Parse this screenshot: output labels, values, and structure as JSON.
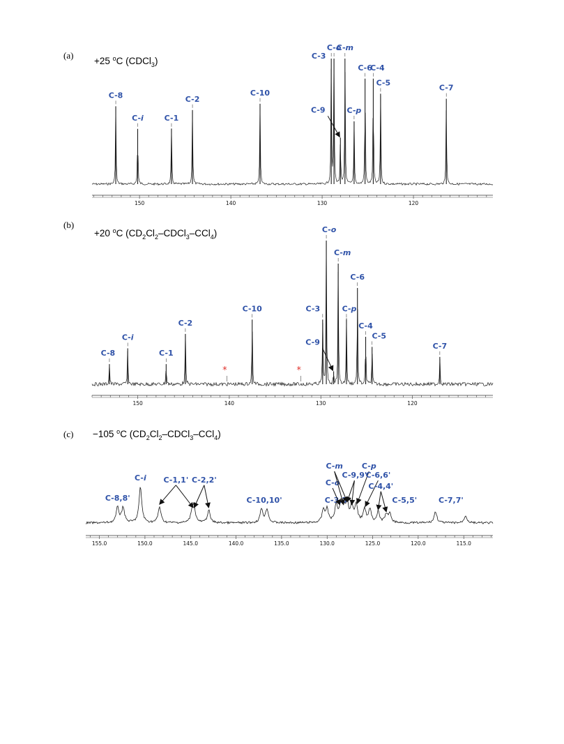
{
  "chart_data": [
    {
      "type": "line",
      "panel": "(a)",
      "condition": "+25 °C (CDCl3)",
      "xlabel": "",
      "ylabel": "",
      "xlim": [
        155.2,
        111.3
      ],
      "x_ticks": [
        150,
        140,
        130,
        120
      ],
      "tick_labels": [
        "150",
        "140",
        "130",
        "120"
      ],
      "series": [
        {
          "values": [
            {
              "x": 152.6,
              "y": 0.62,
              "label": "C-8",
              "dx": 0,
              "dy": 0
            },
            {
              "x": 150.2,
              "y": 0.44,
              "label": "C-i",
              "dx": 0,
              "dy": 0
            },
            {
              "x": 146.5,
              "y": 0.44,
              "label": "C-1",
              "dx": 0,
              "dy": 0
            },
            {
              "x": 144.2,
              "y": 0.59,
              "label": "C-2",
              "dx": 0,
              "dy": 0
            },
            {
              "x": 136.8,
              "y": 0.64,
              "label": "C-10",
              "dx": 0,
              "dy": 0
            },
            {
              "x": 129.0,
              "y": 1.0,
              "label": "C-3",
              "dx": -18,
              "dy": 12
            },
            {
              "x": 128.7,
              "y": 1.0,
              "label": "C-o",
              "dx": 0,
              "dy": 0
            },
            {
              "x": 128.0,
              "y": 0.37,
              "label": "C-9",
              "dx": -32,
              "dy": -14
            },
            {
              "x": 127.5,
              "y": 1.0,
              "label": "C-m",
              "dx": 0,
              "dy": 0
            },
            {
              "x": 126.5,
              "y": 0.5,
              "label": "C-p",
              "dx": 0,
              "dy": 0
            },
            {
              "x": 125.3,
              "y": 0.84,
              "label": "C-6",
              "dx": 0,
              "dy": 0
            },
            {
              "x": 124.4,
              "y": 0.84,
              "label": "C-4",
              "dx": 6,
              "dy": 0
            },
            {
              "x": 123.6,
              "y": 0.72,
              "label": "C-5",
              "dx": 4,
              "dy": 0
            },
            {
              "x": 116.4,
              "y": 0.68,
              "label": "C-7",
              "dx": 0,
              "dy": 0
            }
          ]
        }
      ],
      "stars": []
    },
    {
      "type": "line",
      "panel": "(b)",
      "condition": "+20 °C (CD2Cl2–CDCl3–CCl4)",
      "xlabel": "",
      "ylabel": "",
      "xlim": [
        155.0,
        111.2
      ],
      "x_ticks": [
        150,
        140,
        130,
        120
      ],
      "tick_labels": [
        "150",
        "140",
        "130",
        "120"
      ],
      "series": [
        {
          "values": [
            {
              "x": 153.1,
              "y": 0.14,
              "label": "C-8",
              "dx": -2,
              "dy": 0
            },
            {
              "x": 151.1,
              "y": 0.25,
              "label": "C-i",
              "dx": 0,
              "dy": 0
            },
            {
              "x": 146.9,
              "y": 0.14,
              "label": "C-1",
              "dx": 0,
              "dy": 0
            },
            {
              "x": 144.8,
              "y": 0.35,
              "label": "C-2",
              "dx": 0,
              "dy": 0
            },
            {
              "x": 137.5,
              "y": 0.45,
              "label": "C-10",
              "dx": 0,
              "dy": 0
            },
            {
              "x": 129.8,
              "y": 0.45,
              "label": "C-3",
              "dx": -14,
              "dy": 0
            },
            {
              "x": 129.4,
              "y": 1.0,
              "label": "C-o",
              "dx": 4,
              "dy": 0
            },
            {
              "x": 128.6,
              "y": 0.09,
              "label": "C-9",
              "dx": -30,
              "dy": -16
            },
            {
              "x": 128.1,
              "y": 0.84,
              "label": "C-m",
              "dx": 6,
              "dy": 0
            },
            {
              "x": 127.2,
              "y": 0.45,
              "label": "C-p",
              "dx": 4,
              "dy": 0
            },
            {
              "x": 126.0,
              "y": 0.67,
              "label": "C-6",
              "dx": 0,
              "dy": 0
            },
            {
              "x": 125.1,
              "y": 0.33,
              "label": "C-4",
              "dx": 0,
              "dy": 0
            },
            {
              "x": 124.4,
              "y": 0.26,
              "label": "C-5",
              "dx": 10,
              "dy": 0
            },
            {
              "x": 117.0,
              "y": 0.19,
              "label": "C-7",
              "dx": 0,
              "dy": 0
            }
          ]
        }
      ],
      "stars": [
        {
          "x": 140.5
        },
        {
          "x": 132.4
        }
      ]
    },
    {
      "type": "line",
      "panel": "(c)",
      "condition": "−105 °C (CD2Cl2–CDCl3–CCl4)",
      "xlabel": "",
      "ylabel": "",
      "xlim": [
        156.5,
        111.8
      ],
      "x_ticks": [
        155,
        150,
        145,
        140,
        135,
        130,
        125,
        120,
        115
      ],
      "tick_labels": [
        "155.0",
        "150.0",
        "145.0",
        "140.0",
        "135.0",
        "130.0",
        "125.0",
        "120.0",
        "115.0"
      ],
      "series": [
        {
          "values": [
            {
              "x": 153.0,
              "y": 0.37,
              "label": "C-8,8'",
              "dx": 0,
              "dy": 0
            },
            {
              "x": 152.4,
              "y": 0.37,
              "label": "",
              "dx": 0,
              "dy": 0
            },
            {
              "x": 150.5,
              "y": 0.85,
              "label": "C-i",
              "dx": 0,
              "dy": 0
            },
            {
              "x": 148.4,
              "y": 0.38,
              "label": "",
              "dx": 0,
              "dy": 0
            },
            {
              "x": 144.8,
              "y": 0.3,
              "label": "",
              "dx": 0,
              "dy": 0
            },
            {
              "x": 144.6,
              "y": 0.3,
              "label": "",
              "dx": 0,
              "dy": 0
            },
            {
              "x": 143.0,
              "y": 0.3,
              "label": "",
              "dx": 0,
              "dy": 0
            },
            {
              "x": 137.2,
              "y": 0.33,
              "label": "",
              "dx": 0,
              "dy": 0
            },
            {
              "x": 136.6,
              "y": 0.33,
              "label": "",
              "dx": 0,
              "dy": 0
            },
            {
              "x": 130.4,
              "y": 0.3,
              "label": "",
              "dx": 0,
              "dy": 0
            },
            {
              "x": 130.0,
              "y": 0.3,
              "label": "",
              "dx": 0,
              "dy": 0
            },
            {
              "x": 129.0,
              "y": 0.42,
              "label": "",
              "dx": 0,
              "dy": 0
            },
            {
              "x": 128.5,
              "y": 0.37,
              "label": "",
              "dx": 0,
              "dy": 0
            },
            {
              "x": 128.2,
              "y": 0.37,
              "label": "",
              "dx": 0,
              "dy": 0
            },
            {
              "x": 127.8,
              "y": 0.44,
              "label": "",
              "dx": 0,
              "dy": 0
            },
            {
              "x": 127.3,
              "y": 0.37,
              "label": "",
              "dx": 0,
              "dy": 0
            },
            {
              "x": 126.8,
              "y": 0.4,
              "label": "",
              "dx": 0,
              "dy": 0
            },
            {
              "x": 125.9,
              "y": 0.33,
              "label": "",
              "dx": 0,
              "dy": 0
            },
            {
              "x": 125.3,
              "y": 0.3,
              "label": "",
              "dx": 0,
              "dy": 0
            },
            {
              "x": 124.4,
              "y": 0.25,
              "label": "",
              "dx": 0,
              "dy": 0
            },
            {
              "x": 123.5,
              "y": 0.2,
              "label": "",
              "dx": 0,
              "dy": 0
            },
            {
              "x": 123.1,
              "y": 0.2,
              "label": "",
              "dx": 0,
              "dy": 0
            },
            {
              "x": 118.1,
              "y": 0.27,
              "label": "",
              "dx": 0,
              "dy": 0
            },
            {
              "x": 114.8,
              "y": 0.18,
              "label": "",
              "dx": 0,
              "dy": 0
            }
          ]
        }
      ],
      "free_labels": [
        {
          "text": "C-1,1'",
          "x": 146.6,
          "h": 0.97
        },
        {
          "text": "C-2,2'",
          "x": 143.5,
          "h": 0.97
        },
        {
          "text": "C-10,10'",
          "x": 136.9,
          "h": 0.48
        },
        {
          "text": "C-3,3'",
          "x": 128.9,
          "h": 0.48
        },
        {
          "text": "C-o",
          "x": 129.4,
          "h": 0.9
        },
        {
          "text": "C-m",
          "x": 129.2,
          "h": 1.3
        },
        {
          "text": "C-9,9'",
          "x": 127.0,
          "h": 1.08
        },
        {
          "text": "C-p",
          "x": 125.4,
          "h": 1.3
        },
        {
          "text": "C-6,6'",
          "x": 124.4,
          "h": 1.08
        },
        {
          "text": "C-4,4'",
          "x": 124.1,
          "h": 0.82
        },
        {
          "text": "C-5,5'",
          "x": 121.5,
          "h": 0.48
        },
        {
          "text": "C-7,7'",
          "x": 116.4,
          "h": 0.48
        }
      ],
      "stars": []
    }
  ]
}
